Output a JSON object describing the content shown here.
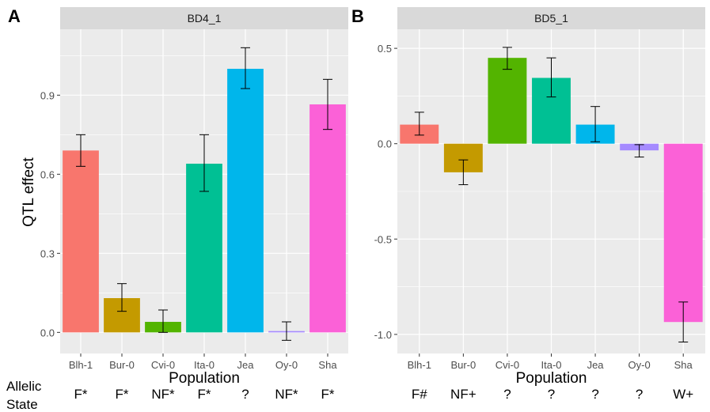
{
  "figure": {
    "row_label_line1": "Allelic",
    "row_label_line2": "State",
    "ylabel": "QTL effect"
  },
  "chart_data": [
    {
      "type": "bar",
      "panel_letter": "A",
      "title": "BD4_1",
      "xlabel": "Population",
      "ylabel": "QTL effect",
      "categories": [
        "Blh-1",
        "Bur-0",
        "Cvi-0",
        "Ita-0",
        "Jea",
        "Oy-0",
        "Sha"
      ],
      "values": [
        0.69,
        0.13,
        0.04,
        0.64,
        1.0,
        0.005,
        0.865
      ],
      "error_low": [
        0.63,
        0.08,
        0.0,
        0.535,
        0.925,
        -0.03,
        0.77
      ],
      "error_high": [
        0.75,
        0.185,
        0.085,
        0.75,
        1.08,
        0.04,
        0.96
      ],
      "colors": [
        "#F8766D",
        "#C49A00",
        "#53B400",
        "#00C094",
        "#00B6EB",
        "#A58AFF",
        "#FB61D7"
      ],
      "yticks": [
        0.0,
        0.3,
        0.6,
        0.9
      ],
      "ytick_labels": [
        "0.0",
        "0.3",
        "0.6",
        "0.9"
      ],
      "ylim": [
        -0.08,
        1.15
      ],
      "allelic_state": [
        "F*",
        "F*",
        "NF*",
        "F*",
        "?",
        "NF*",
        "F*"
      ],
      "grid": true
    },
    {
      "type": "bar",
      "panel_letter": "B",
      "title": "BD5_1",
      "xlabel": "Population",
      "ylabel": "",
      "categories": [
        "Blh-1",
        "Bur-0",
        "Cvi-0",
        "Ita-0",
        "Jea",
        "Oy-0",
        "Sha"
      ],
      "values": [
        0.1,
        -0.15,
        0.45,
        0.345,
        0.1,
        -0.035,
        -0.935
      ],
      "error_low": [
        0.045,
        -0.215,
        0.39,
        0.245,
        0.01,
        -0.07,
        -1.04
      ],
      "error_high": [
        0.165,
        -0.085,
        0.505,
        0.45,
        0.195,
        -0.005,
        -0.83
      ],
      "colors": [
        "#F8766D",
        "#C49A00",
        "#53B400",
        "#00C094",
        "#00B6EB",
        "#A58AFF",
        "#FB61D7"
      ],
      "yticks": [
        0.5,
        0.0,
        -0.5,
        -1.0
      ],
      "ytick_labels": [
        "0.5",
        "0.0",
        "-0.5",
        "-1.0"
      ],
      "ylim": [
        -1.1,
        0.6
      ],
      "allelic_state": [
        "F#",
        "NF+",
        "?",
        "?",
        "?",
        "?",
        "W+"
      ],
      "grid": true
    }
  ]
}
